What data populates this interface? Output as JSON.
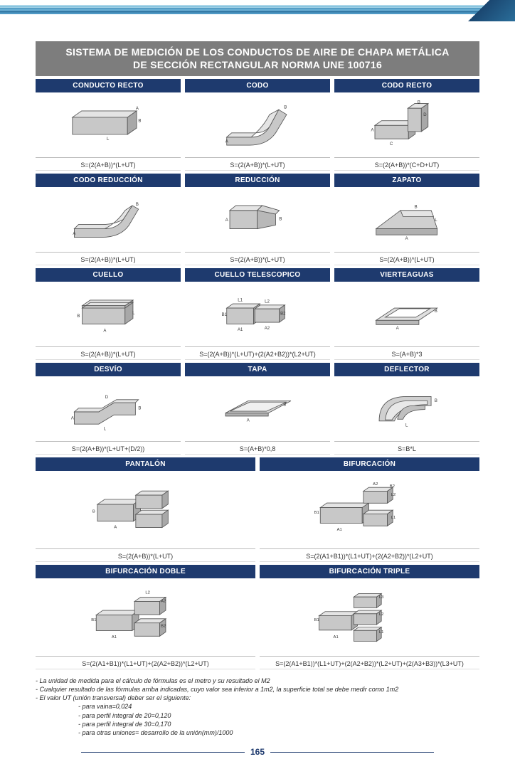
{
  "page_number": "165",
  "title_line1": "SISTEMA DE MEDICIÓN DE LOS CONDUCTOS DE AIRE DE CHAPA METÁLICA",
  "title_line2": "DE SECCIÓN RECTANGULAR NORMA UNE 100716",
  "colors": {
    "header_bg": "#7d7d7d",
    "cell_head_bg": "#1e3a6e",
    "text": "#333333",
    "duct_fill": "#c8c8c8",
    "duct_stroke": "#555555"
  },
  "rows": [
    {
      "cols": 3,
      "items": [
        {
          "name": "CONDUCTO RECTO",
          "formula": "S=(2(A+B))*(L+UT)"
        },
        {
          "name": "CODO",
          "formula": "S=(2(A+B))*(L+UT)"
        },
        {
          "name": "CODO RECTO",
          "formula": "S=(2(A+B))*(C+D+UT)"
        }
      ]
    },
    {
      "cols": 3,
      "items": [
        {
          "name": "CODO REDUCCIÓN",
          "formula": "S=(2(A+B))*(L+UT)"
        },
        {
          "name": "REDUCCIÓN",
          "formula": "S=(2(A+B))*(L+UT)"
        },
        {
          "name": "ZAPATO",
          "formula": "S=(2(A+B))*(L+UT)"
        }
      ]
    },
    {
      "cols": 3,
      "items": [
        {
          "name": "CUELLO",
          "formula": "S=(2(A+B))*(L+UT)"
        },
        {
          "name": "CUELLO TELESCOPICO",
          "formula": "S=(2(A+B))*(L+UT)+(2(A2+B2))*(L2+UT)"
        },
        {
          "name": "VIERTEAGUAS",
          "formula": "S=(A+B)*3"
        }
      ]
    },
    {
      "cols": 3,
      "items": [
        {
          "name": "DESVÍO",
          "formula": "S=(2(A+B))*(L+UT+(D/2))"
        },
        {
          "name": "TAPA",
          "formula": "S=(A+B)*0,8"
        },
        {
          "name": "DEFLECTOR",
          "formula": "S=B*L"
        }
      ]
    },
    {
      "cols": 2,
      "tall": true,
      "items": [
        {
          "name": "PANTALÓN",
          "formula": "S=(2(A+B))*(L+UT)"
        },
        {
          "name": "BIFURCACIÓN",
          "formula": "S=(2(A1+B1))*(L1+UT)+(2(A2+B2))*(L2+UT)"
        }
      ]
    },
    {
      "cols": 2,
      "tall": true,
      "items": [
        {
          "name": "BIFURCACIÓN DOBLE",
          "formula": "S=(2(A1+B1))*(L1+UT)+(2(A2+B2))*(L2+UT)"
        },
        {
          "name": "BIFURCACIÓN TRIPLE",
          "formula": "S=(2(A1+B1))*(L1+UT)+(2(A2+B2))*(L2+UT)+(2(A3+B3))*(L3+UT)"
        }
      ]
    }
  ],
  "notes": {
    "l1": "- La unidad de medida para el cálculo de fórmulas es el metro y su resultado el M2",
    "l2": "- Cualquier resultado de las fórmulas arriba indicadas, cuyo valor sea inferior a 1m2, la superficie total se debe medir como 1m2",
    "l3": "- El valor UT (unión transversal) deber ser el siguiente:",
    "s1": "- para vaina=0,024",
    "s2": "- para perfil integral de 20=0,120",
    "s3": "- para perfil integral de 30=0,170",
    "s4": "- para otras uniones= desarrollo de la unión(mm)/1000"
  }
}
